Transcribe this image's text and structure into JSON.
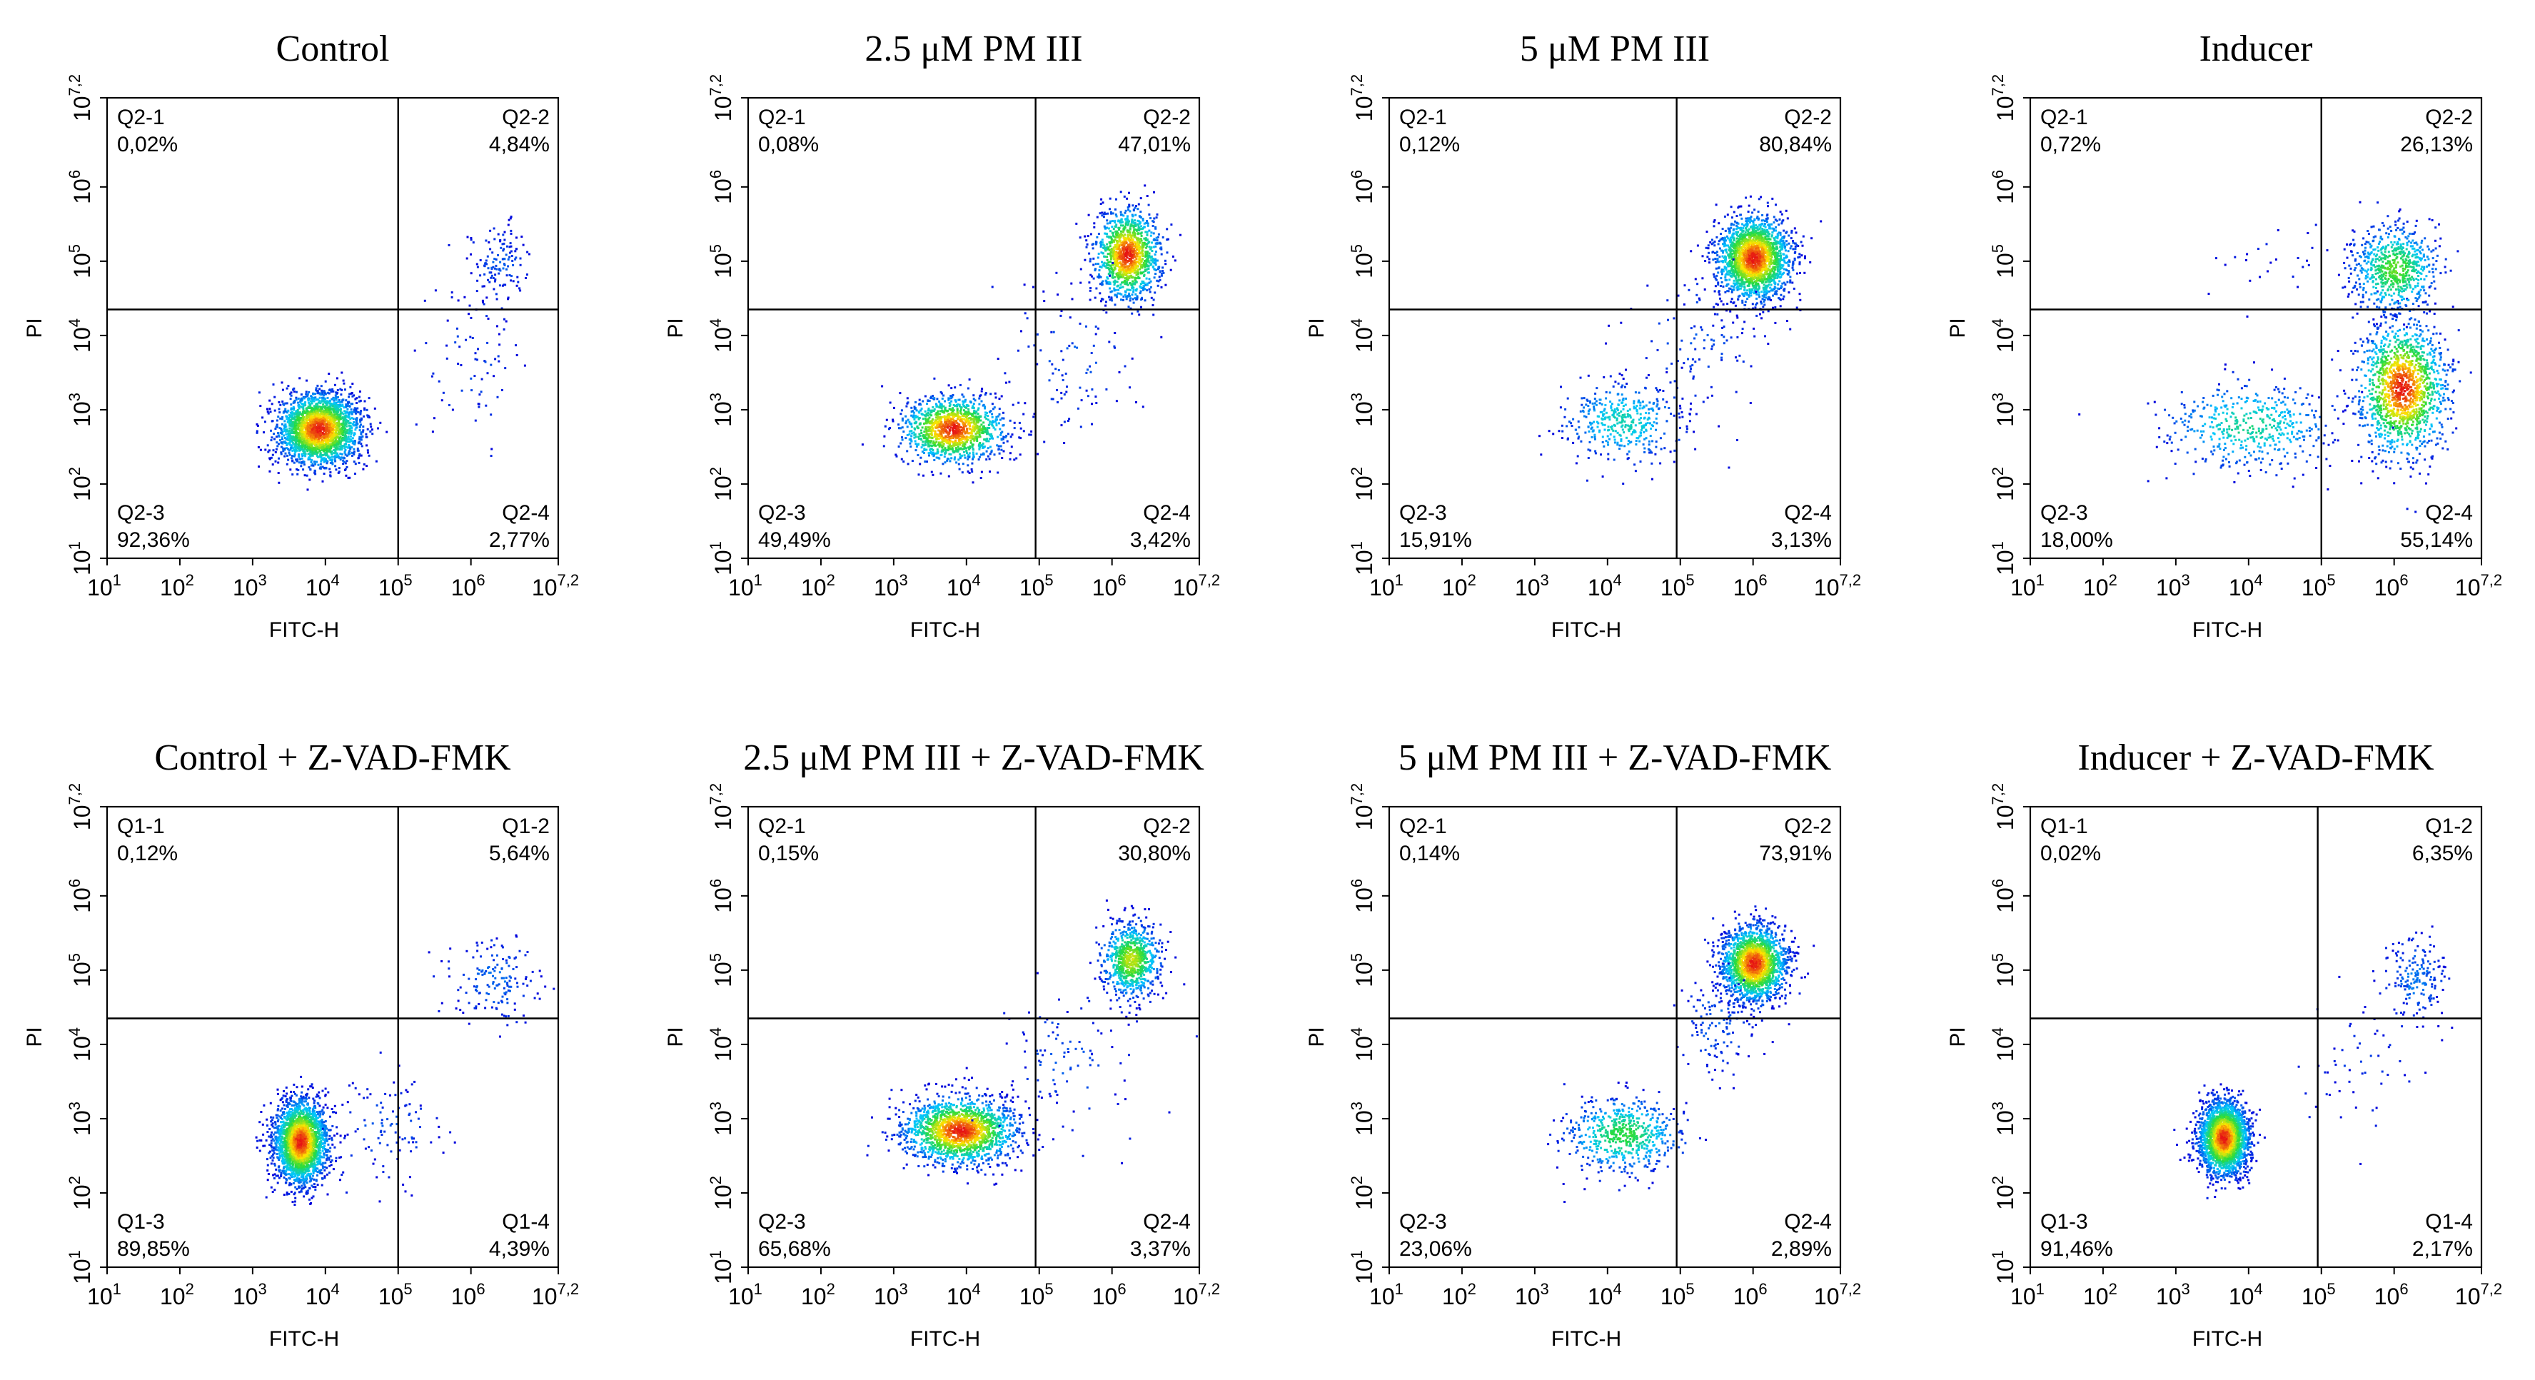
{
  "figure": {
    "x_axis_label": "FITC-H",
    "y_axis_label": "PI",
    "tick_labels": [
      {
        "base": "10",
        "exp": "1"
      },
      {
        "base": "10",
        "exp": "2"
      },
      {
        "base": "10",
        "exp": "3"
      },
      {
        "base": "10",
        "exp": "4"
      },
      {
        "base": "10",
        "exp": "5"
      },
      {
        "base": "10",
        "exp": "6"
      },
      {
        "base": "10",
        "exp": "7,2"
      }
    ]
  },
  "chart_data": [
    {
      "type": "scatter",
      "title": "Control",
      "xlabel": "FITC-H",
      "ylabel": "PI",
      "xlim_log10": [
        1,
        7.2
      ],
      "ylim_log10": [
        1,
        7.2
      ],
      "gate_log10": {
        "x": 5.0,
        "y": 4.35
      },
      "quadrants": [
        {
          "label": "Q2-1",
          "value": "0,02%",
          "pos": "top-left"
        },
        {
          "label": "Q2-2",
          "value": "4,84%",
          "pos": "top-right"
        },
        {
          "label": "Q2-3",
          "value": "92,36%",
          "pos": "bottom-left"
        },
        {
          "label": "Q2-4",
          "value": "2,77%",
          "pos": "bottom-right"
        }
      ],
      "populations_log10": [
        {
          "x": 3.9,
          "y": 2.75,
          "sx": 0.28,
          "sy": 0.24,
          "share": 0.92
        },
        {
          "x": 6.4,
          "y": 5.0,
          "sx": 0.2,
          "sy": 0.25,
          "share": 0.05
        },
        {
          "x": 6.0,
          "y": 3.6,
          "sx": 0.35,
          "sy": 0.55,
          "share": 0.03
        }
      ]
    },
    {
      "type": "scatter",
      "title": "2.5 μM PM III",
      "xlabel": "FITC-H",
      "ylabel": "PI",
      "xlim_log10": [
        1,
        7.2
      ],
      "ylim_log10": [
        1,
        7.2
      ],
      "gate_log10": {
        "x": 4.95,
        "y": 4.35
      },
      "quadrants": [
        {
          "label": "Q2-1",
          "value": "0,08%",
          "pos": "top-left"
        },
        {
          "label": "Q2-2",
          "value": "47,01%",
          "pos": "top-right"
        },
        {
          "label": "Q2-3",
          "value": "49,49%",
          "pos": "bottom-left"
        },
        {
          "label": "Q2-4",
          "value": "3,42%",
          "pos": "bottom-right"
        }
      ],
      "populations_log10": [
        {
          "x": 3.8,
          "y": 2.75,
          "sx": 0.35,
          "sy": 0.22,
          "share": 0.49
        },
        {
          "x": 6.2,
          "y": 5.1,
          "sx": 0.22,
          "sy": 0.3,
          "share": 0.47
        },
        {
          "x": 5.4,
          "y": 3.7,
          "sx": 0.5,
          "sy": 0.5,
          "share": 0.04
        }
      ]
    },
    {
      "type": "scatter",
      "title": "5 μM PM III",
      "xlabel": "FITC-H",
      "ylabel": "PI",
      "xlim_log10": [
        1,
        7.2
      ],
      "ylim_log10": [
        1,
        7.2
      ],
      "gate_log10": {
        "x": 4.95,
        "y": 4.35
      },
      "quadrants": [
        {
          "label": "Q2-1",
          "value": "0,12%",
          "pos": "top-left"
        },
        {
          "label": "Q2-2",
          "value": "80,84%",
          "pos": "top-right"
        },
        {
          "label": "Q2-3",
          "value": "15,91%",
          "pos": "bottom-left"
        },
        {
          "label": "Q2-4",
          "value": "3,13%",
          "pos": "bottom-right"
        }
      ],
      "populations_log10": [
        {
          "x": 6.0,
          "y": 5.05,
          "sx": 0.25,
          "sy": 0.28,
          "share": 0.8
        },
        {
          "x": 4.2,
          "y": 2.85,
          "sx": 0.42,
          "sy": 0.28,
          "share": 0.16
        },
        {
          "x": 5.2,
          "y": 3.9,
          "sx": 0.45,
          "sy": 0.5,
          "share": 0.04
        }
      ]
    },
    {
      "type": "scatter",
      "title": "Inducer",
      "xlabel": "FITC-H",
      "ylabel": "PI",
      "xlim_log10": [
        1,
        7.2
      ],
      "ylim_log10": [
        1,
        7.2
      ],
      "gate_log10": {
        "x": 5.0,
        "y": 4.35
      },
      "quadrants": [
        {
          "label": "Q2-1",
          "value": "0,72%",
          "pos": "top-left"
        },
        {
          "label": "Q2-2",
          "value": "26,13%",
          "pos": "top-right"
        },
        {
          "label": "Q2-3",
          "value": "18,00%",
          "pos": "bottom-left"
        },
        {
          "label": "Q2-4",
          "value": "55,14%",
          "pos": "bottom-right"
        }
      ],
      "populations_log10": [
        {
          "x": 6.1,
          "y": 3.3,
          "sx": 0.3,
          "sy": 0.45,
          "share": 0.55
        },
        {
          "x": 6.0,
          "y": 4.9,
          "sx": 0.3,
          "sy": 0.3,
          "share": 0.26
        },
        {
          "x": 4.0,
          "y": 2.8,
          "sx": 0.6,
          "sy": 0.3,
          "share": 0.18
        },
        {
          "x": 4.2,
          "y": 5.0,
          "sx": 0.5,
          "sy": 0.25,
          "share": 0.01
        }
      ]
    },
    {
      "type": "scatter",
      "title": "Control + Z-VAD-FMK",
      "xlabel": "FITC-H",
      "ylabel": "PI",
      "xlim_log10": [
        1,
        7.2
      ],
      "ylim_log10": [
        1,
        7.2
      ],
      "gate_log10": {
        "x": 5.0,
        "y": 4.35
      },
      "quadrants": [
        {
          "label": "Q1-1",
          "value": "0,12%",
          "pos": "top-left"
        },
        {
          "label": "Q1-2",
          "value": "5,64%",
          "pos": "top-right"
        },
        {
          "label": "Q1-3",
          "value": "89,85%",
          "pos": "bottom-left"
        },
        {
          "label": "Q1-4",
          "value": "4,39%",
          "pos": "bottom-right"
        }
      ],
      "populations_log10": [
        {
          "x": 3.65,
          "y": 2.7,
          "sx": 0.18,
          "sy": 0.28,
          "share": 0.9
        },
        {
          "x": 6.3,
          "y": 4.9,
          "sx": 0.3,
          "sy": 0.3,
          "share": 0.06
        },
        {
          "x": 4.8,
          "y": 2.9,
          "sx": 0.4,
          "sy": 0.35,
          "share": 0.04
        }
      ]
    },
    {
      "type": "scatter",
      "title": "2.5 μM PM III + Z-VAD-FMK",
      "xlabel": "FITC-H",
      "ylabel": "PI",
      "xlim_log10": [
        1,
        7.2
      ],
      "ylim_log10": [
        1,
        7.2
      ],
      "gate_log10": {
        "x": 4.95,
        "y": 4.35
      },
      "quadrants": [
        {
          "label": "Q2-1",
          "value": "0,15%",
          "pos": "top-left"
        },
        {
          "label": "Q2-2",
          "value": "30,80%",
          "pos": "top-right"
        },
        {
          "label": "Q2-3",
          "value": "65,68%",
          "pos": "bottom-left"
        },
        {
          "label": "Q2-4",
          "value": "3,37%",
          "pos": "bottom-right"
        }
      ],
      "populations_log10": [
        {
          "x": 3.9,
          "y": 2.85,
          "sx": 0.38,
          "sy": 0.22,
          "share": 0.65
        },
        {
          "x": 6.25,
          "y": 5.15,
          "sx": 0.2,
          "sy": 0.25,
          "share": 0.31
        },
        {
          "x": 5.4,
          "y": 3.8,
          "sx": 0.5,
          "sy": 0.5,
          "share": 0.04
        }
      ]
    },
    {
      "type": "scatter",
      "title": "5 μM PM III + Z-VAD-FMK",
      "xlabel": "FITC-H",
      "ylabel": "PI",
      "xlim_log10": [
        1,
        7.2
      ],
      "ylim_log10": [
        1,
        7.2
      ],
      "gate_log10": {
        "x": 4.95,
        "y": 4.35
      },
      "quadrants": [
        {
          "label": "Q2-1",
          "value": "0,14%",
          "pos": "top-left"
        },
        {
          "label": "Q2-2",
          "value": "73,91%",
          "pos": "top-right"
        },
        {
          "label": "Q2-3",
          "value": "23,06%",
          "pos": "bottom-left"
        },
        {
          "label": "Q2-4",
          "value": "2,89%",
          "pos": "bottom-right"
        }
      ],
      "populations_log10": [
        {
          "x": 6.0,
          "y": 5.1,
          "sx": 0.22,
          "sy": 0.25,
          "share": 0.72
        },
        {
          "x": 4.2,
          "y": 2.8,
          "sx": 0.4,
          "sy": 0.25,
          "share": 0.23
        },
        {
          "x": 5.5,
          "y": 4.3,
          "sx": 0.3,
          "sy": 0.4,
          "share": 0.05
        }
      ]
    },
    {
      "type": "scatter",
      "title": "Inducer + Z-VAD-FMK",
      "xlabel": "FITC-H",
      "ylabel": "PI",
      "xlim_log10": [
        1,
        7.2
      ],
      "ylim_log10": [
        1,
        7.2
      ],
      "gate_log10": {
        "x": 4.95,
        "y": 4.35
      },
      "quadrants": [
        {
          "label": "Q1-1",
          "value": "0,02%",
          "pos": "top-left"
        },
        {
          "label": "Q1-2",
          "value": "6,35%",
          "pos": "top-right"
        },
        {
          "label": "Q1-3",
          "value": "91,46%",
          "pos": "bottom-left"
        },
        {
          "label": "Q1-4",
          "value": "2,17%",
          "pos": "bottom-right"
        }
      ],
      "populations_log10": [
        {
          "x": 3.65,
          "y": 2.75,
          "sx": 0.17,
          "sy": 0.25,
          "share": 0.91
        },
        {
          "x": 6.3,
          "y": 4.9,
          "sx": 0.22,
          "sy": 0.3,
          "share": 0.07
        },
        {
          "x": 5.5,
          "y": 3.8,
          "sx": 0.4,
          "sy": 0.4,
          "share": 0.02
        }
      ]
    }
  ]
}
